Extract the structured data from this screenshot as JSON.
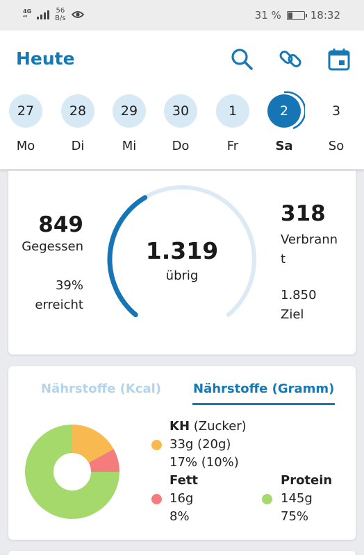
{
  "status_bar": {
    "network": "4G",
    "network_sub": "⁴⁶",
    "speed_value": "56",
    "speed_unit": "B/s",
    "battery_percent": "31 %",
    "battery_level": 0.31,
    "time": "18:32",
    "icons": [
      "signal-icon",
      "eye-icon",
      "battery-icon"
    ]
  },
  "header": {
    "title": "Heute",
    "icons": [
      "search-icon",
      "link-icon",
      "calendar-icon"
    ],
    "accent_color": "#1579b6"
  },
  "days": [
    {
      "num": "27",
      "name": "Mo",
      "state": "past"
    },
    {
      "num": "28",
      "name": "Di",
      "state": "past"
    },
    {
      "num": "29",
      "name": "Mi",
      "state": "past"
    },
    {
      "num": "30",
      "name": "Do",
      "state": "past"
    },
    {
      "num": "1",
      "name": "Fr",
      "state": "past"
    },
    {
      "num": "2",
      "name": "Sa",
      "state": "active"
    },
    {
      "num": "3",
      "name": "So",
      "state": "future"
    }
  ],
  "summary": {
    "eaten_value": "849",
    "eaten_label": "Gegessen",
    "reached_percent": "39%",
    "reached_label": "erreicht",
    "remaining_value": "1.319",
    "remaining_label": "übrig",
    "burned_value": "318",
    "burned_label_1": "Verbrann",
    "burned_label_2": "t",
    "goal_value": "1.850",
    "goal_label": "Ziel",
    "progress_fraction": 0.39
  },
  "nutrients": {
    "tab_kcal": "Nährstoffe (Kcal)",
    "tab_gram": "Nährstoffe (Gramm)",
    "active_tab": "gram",
    "carbs": {
      "title": "KH",
      "title_extra": "(Zucker)",
      "grams": "33g (20g)",
      "percent": "17% (10%)",
      "color": "#f8b951",
      "share": 17
    },
    "fat": {
      "title": "Fett",
      "grams": "16g",
      "percent": "8%",
      "color": "#f57c7c",
      "share": 8
    },
    "protein": {
      "title": "Protein",
      "grams": "145g",
      "percent": "75%",
      "color": "#a5d96c",
      "share": 75
    }
  }
}
